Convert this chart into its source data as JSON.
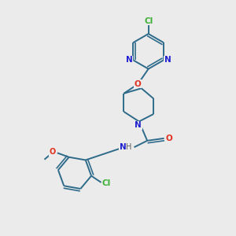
{
  "bg_color": "#ebebeb",
  "bond_color": "#2e6b8a",
  "cl_color": "#3cb034",
  "n_color": "#2020d0",
  "o_color": "#e03020",
  "h_color": "#606060",
  "line_width": 1.4,
  "fig_width": 3.0,
  "fig_height": 3.0,
  "dpi": 100,
  "xlim": [
    0,
    10
  ],
  "ylim": [
    0,
    10
  ]
}
